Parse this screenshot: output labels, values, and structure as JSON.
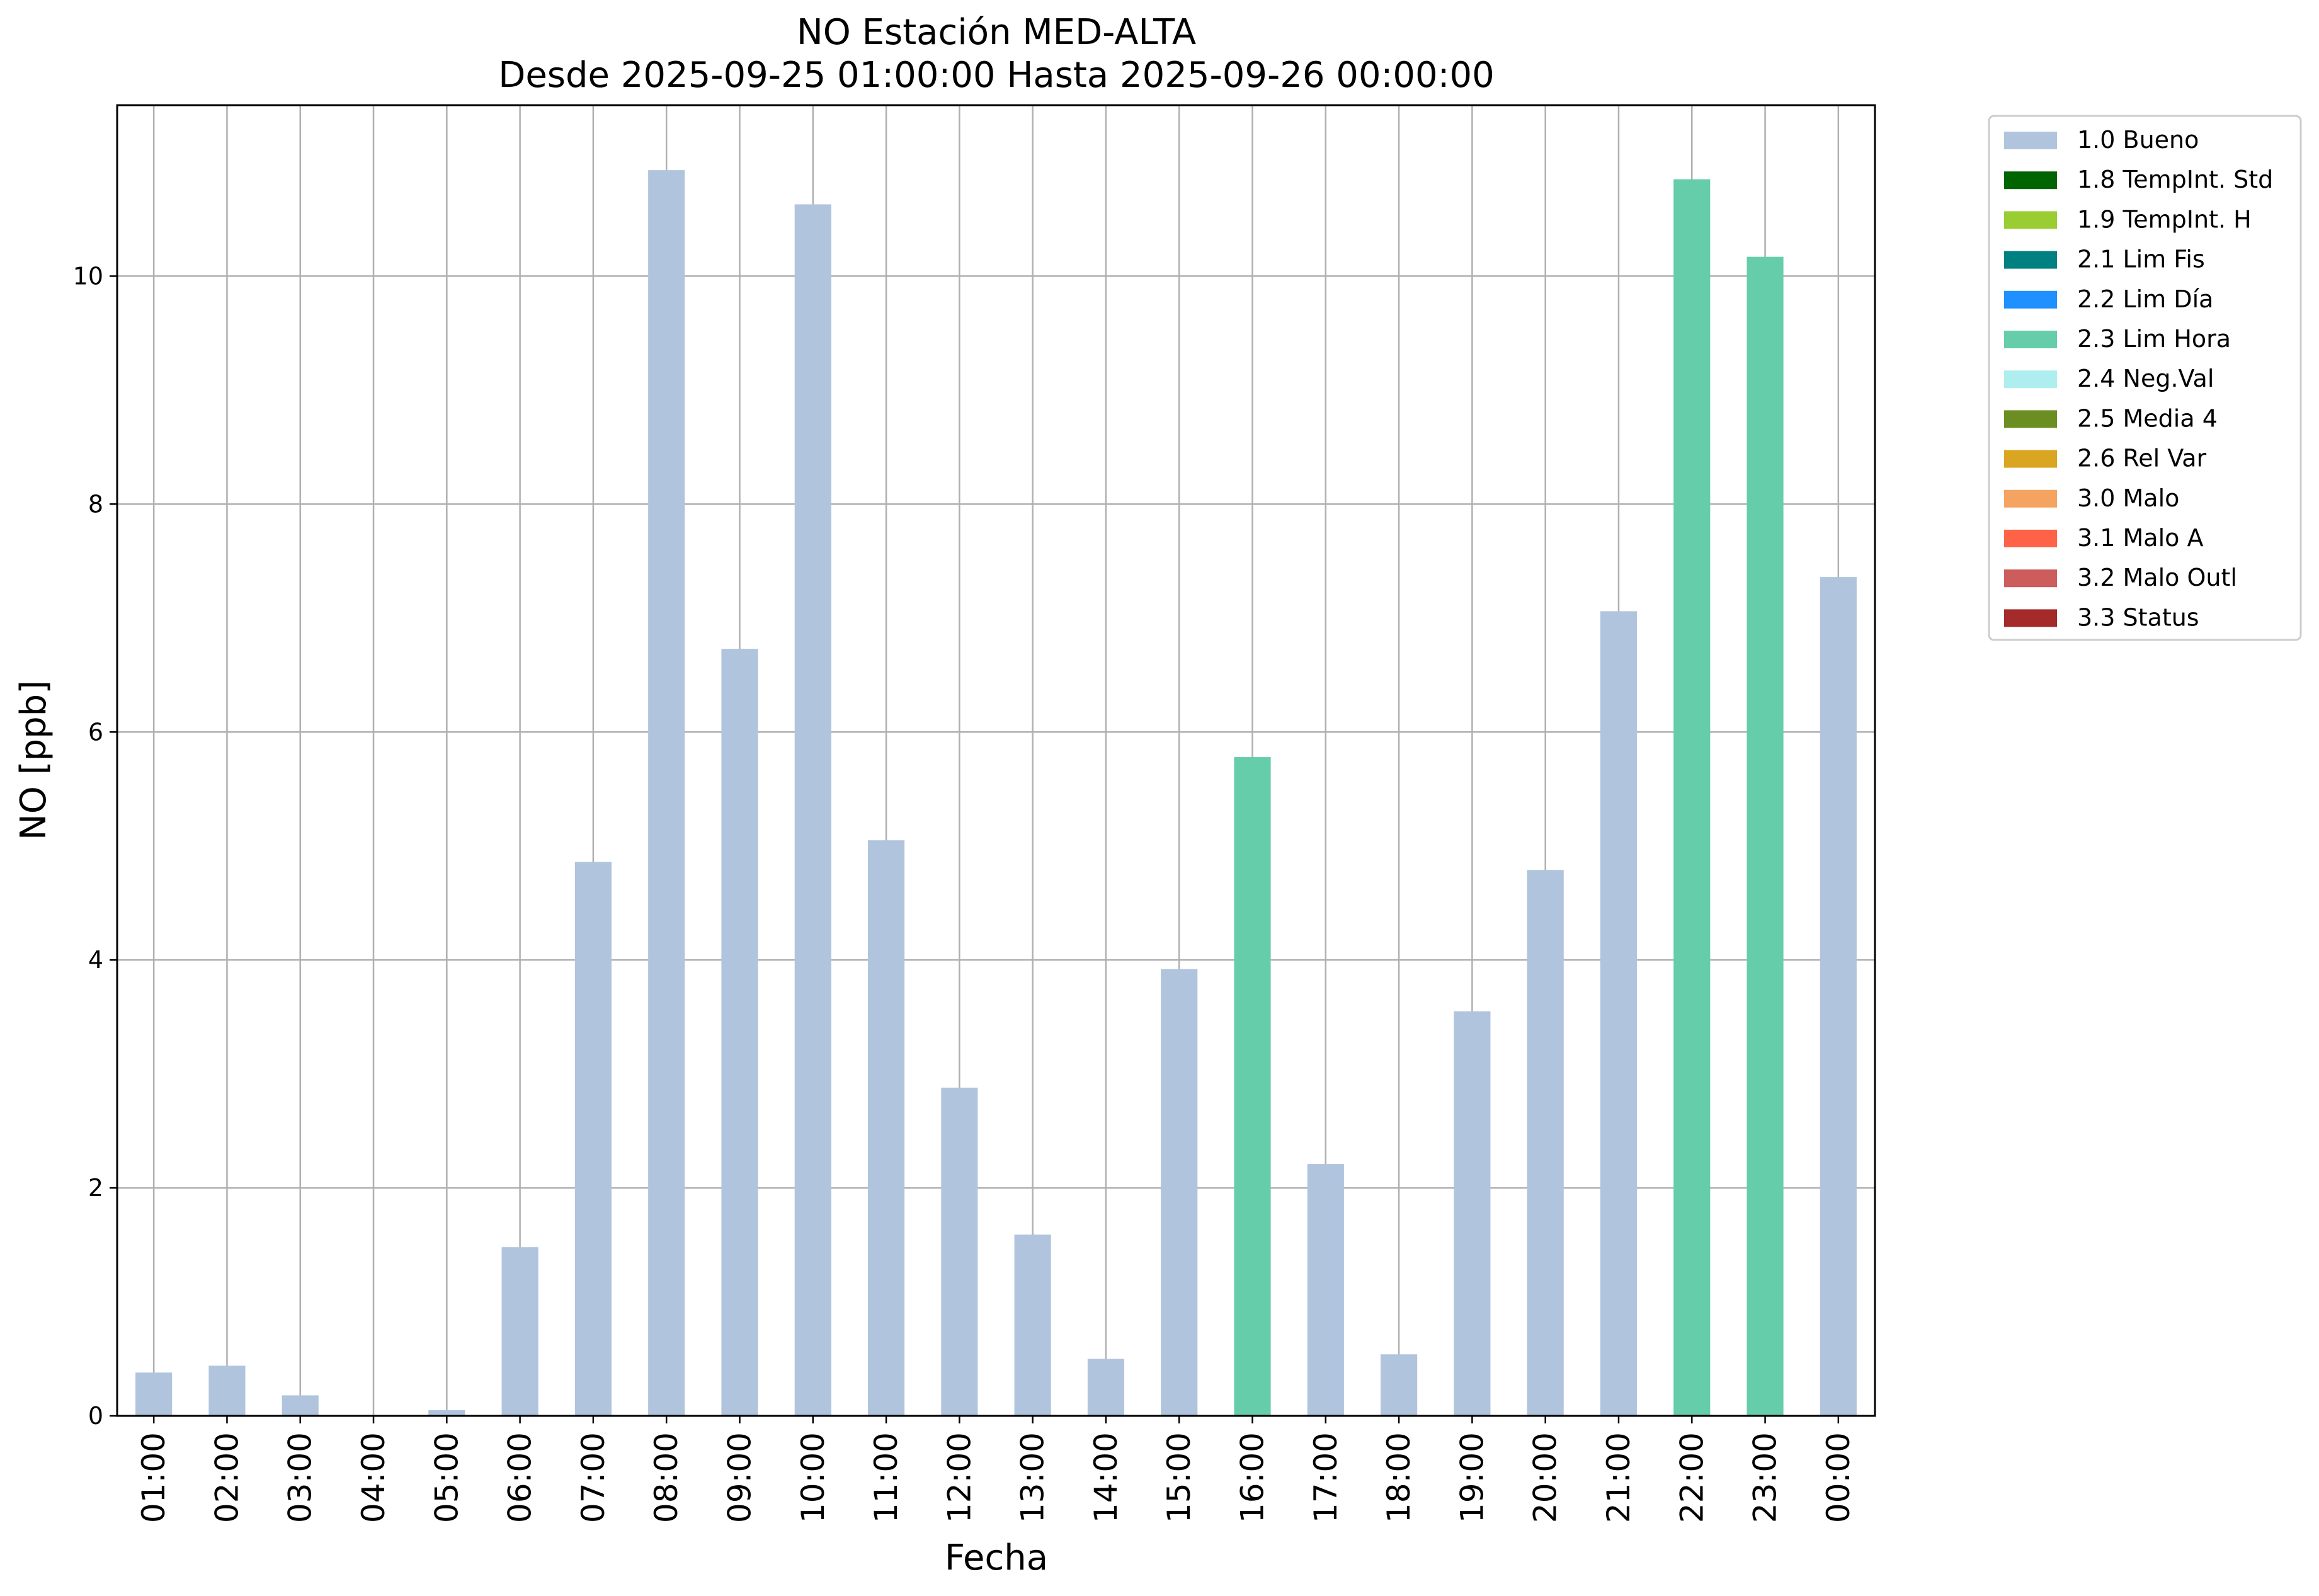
{
  "chart_data": {
    "type": "bar",
    "title": "NO Estación MED-ALTA",
    "subtitle": "Desde 2025-09-25 01:00:00 Hasta 2025-09-26 00:00:00",
    "xlabel": "Fecha",
    "ylabel": "NO [ppb]",
    "ylim": [
      0,
      11.5
    ],
    "yticks": [
      0,
      2,
      4,
      6,
      8,
      10
    ],
    "grid": true,
    "legend_position": "outside-top-right",
    "categories": [
      "01:00",
      "02:00",
      "03:00",
      "04:00",
      "05:00",
      "06:00",
      "07:00",
      "08:00",
      "09:00",
      "10:00",
      "11:00",
      "12:00",
      "13:00",
      "14:00",
      "15:00",
      "16:00",
      "17:00",
      "18:00",
      "19:00",
      "20:00",
      "21:00",
      "22:00",
      "23:00",
      "00:00"
    ],
    "values": [
      0.38,
      0.44,
      0.18,
      0.0,
      0.05,
      1.48,
      4.86,
      10.93,
      6.73,
      10.63,
      5.05,
      2.88,
      1.59,
      0.5,
      3.92,
      5.78,
      2.21,
      0.54,
      3.55,
      4.79,
      7.06,
      10.85,
      10.17,
      7.36
    ],
    "flags": [
      "1.0 Bueno",
      "1.0 Bueno",
      "1.0 Bueno",
      "1.0 Bueno",
      "1.0 Bueno",
      "1.0 Bueno",
      "1.0 Bueno",
      "1.0 Bueno",
      "1.0 Bueno",
      "1.0 Bueno",
      "1.0 Bueno",
      "1.0 Bueno",
      "1.0 Bueno",
      "1.0 Bueno",
      "1.0 Bueno",
      "2.3 Lim Hora",
      "1.0 Bueno",
      "1.0 Bueno",
      "1.0 Bueno",
      "1.0 Bueno",
      "1.0 Bueno",
      "2.3 Lim Hora",
      "2.3 Lim Hora",
      "1.0 Bueno"
    ],
    "legend": [
      {
        "name": "1.0 Bueno",
        "color": "#b0c4de"
      },
      {
        "name": "1.8 TempInt. Std",
        "color": "#006400"
      },
      {
        "name": "1.9 TempInt. H",
        "color": "#9acd32"
      },
      {
        "name": "2.1 Lim Fis",
        "color": "#008080"
      },
      {
        "name": "2.2 Lim Día",
        "color": "#1e90ff"
      },
      {
        "name": "2.3 Lim Hora",
        "color": "#66cdaa"
      },
      {
        "name": "2.4 Neg.Val",
        "color": "#afeeee"
      },
      {
        "name": "2.5 Media 4",
        "color": "#6b8e23"
      },
      {
        "name": "2.6 Rel Var",
        "color": "#daa520"
      },
      {
        "name": "3.0 Malo",
        "color": "#f4a460"
      },
      {
        "name": "3.1 Malo A",
        "color": "#ff6347"
      },
      {
        "name": "3.2 Malo Outl",
        "color": "#cd5c5c"
      },
      {
        "name": "3.3 Status",
        "color": "#a52a2a"
      }
    ]
  }
}
